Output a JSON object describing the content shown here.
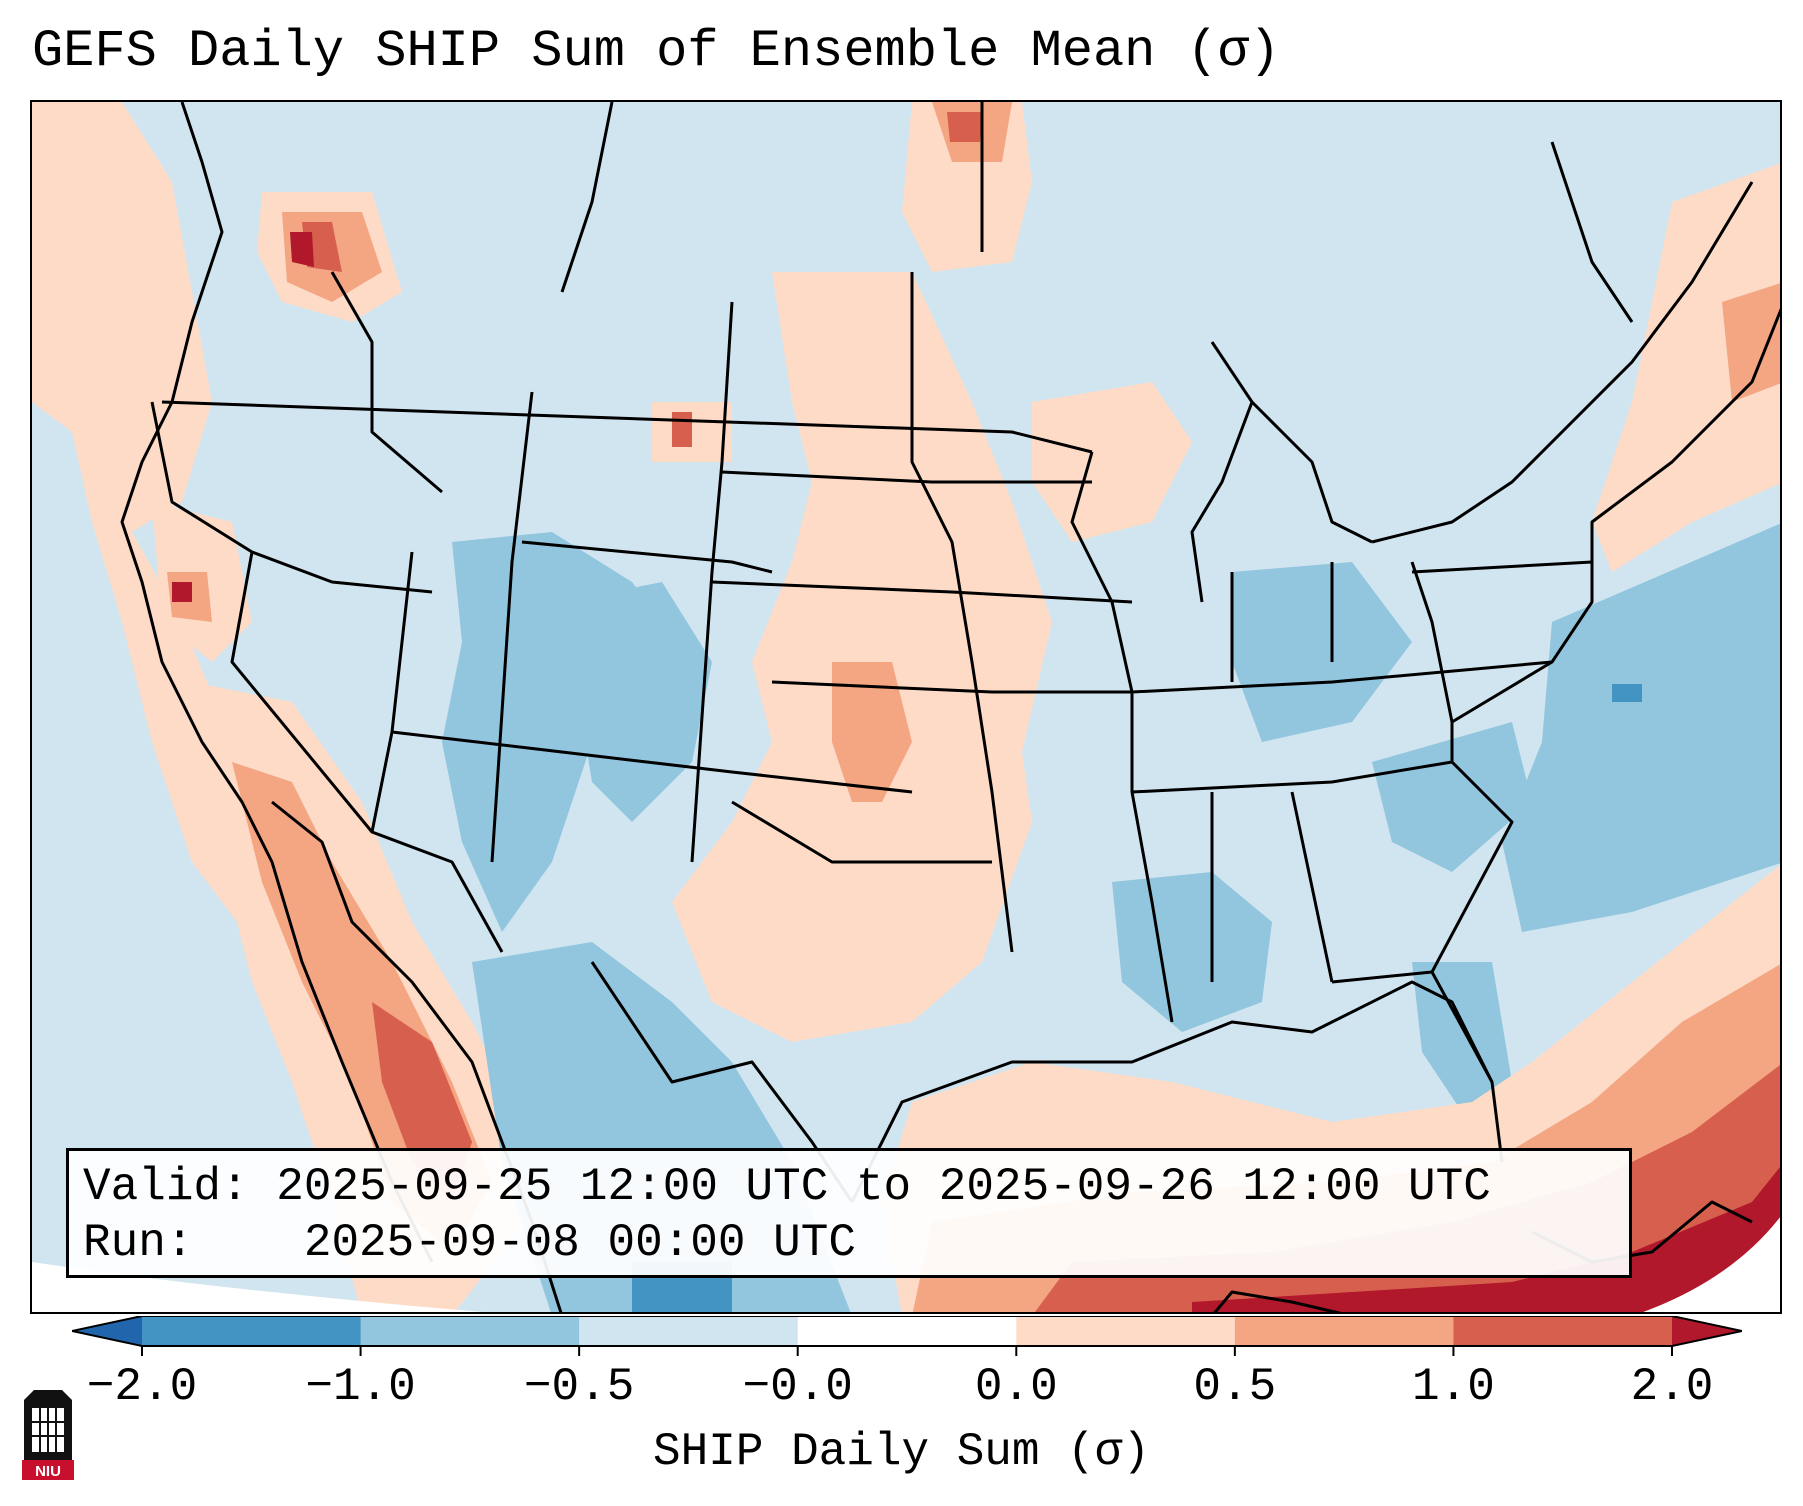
{
  "title": "GEFS Daily SHIP Sum of Ensemble Mean (σ)",
  "info": {
    "valid_label": "Valid:",
    "valid_value": "2025-09-25 12:00 UTC to 2025-09-26 12:00 UTC",
    "run_label": "Run:",
    "run_value": "2025-09-08 00:00 UTC"
  },
  "colorbar": {
    "label": "SHIP Daily Sum (σ)",
    "ticks": [
      "−2.0",
      "−1.0",
      "−0.5",
      "−0.0",
      "0.0",
      "0.5",
      "1.0",
      "2.0"
    ],
    "colors": [
      "#2166ac",
      "#4393c3",
      "#92c5de",
      "#d1e5f0",
      "#ffffff",
      "#fddbc7",
      "#f4a582",
      "#d6604d",
      "#b2182b"
    ]
  },
  "logo": {
    "text": "NIU"
  }
}
